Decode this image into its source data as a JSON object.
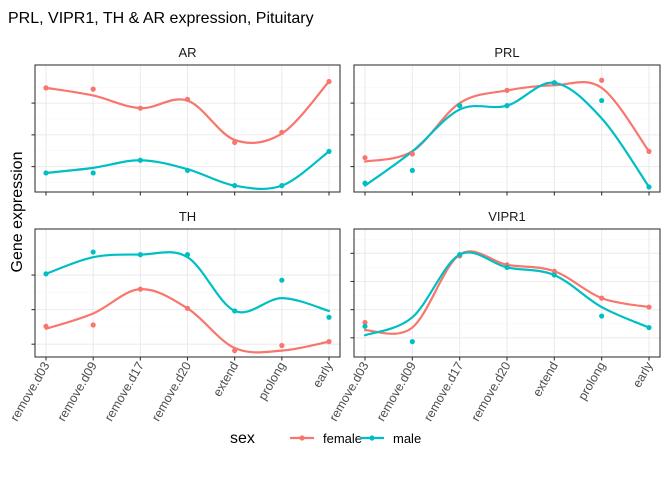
{
  "chart_data": {
    "type": "line",
    "title": "PRL, VIPR1, TH & AR expression, Pituitary",
    "xlabel": "",
    "ylabel": "Gene expression",
    "categories": [
      "remove.d03",
      "remove.d09",
      "remove.d17",
      "remove.d20",
      "extend",
      "prolong",
      "early"
    ],
    "legend": {
      "title": "sex",
      "position": "bottom",
      "items": [
        {
          "name": "female",
          "color": "#F8766D"
        },
        {
          "name": "male",
          "color": "#00BFC4"
        }
      ]
    },
    "colors": {
      "female": "#F8766D",
      "male": "#00BFC4"
    },
    "grid": true,
    "smooth": true,
    "y_tick_labels_shown": false,
    "panels": [
      {
        "name": "AR",
        "ylim": [
          0,
          1
        ],
        "yticks": [
          0.2,
          0.45,
          0.7
        ],
        "series": [
          {
            "name": "female",
            "points": [
              0.82,
              0.81,
              0.66,
              0.73,
              0.39,
              0.47,
              0.87
            ],
            "smooth": [
              0.82,
              0.76,
              0.66,
              0.72,
              0.41,
              0.46,
              0.87
            ]
          },
          {
            "name": "male",
            "points": [
              0.15,
              0.15,
              0.25,
              0.17,
              0.05,
              0.05,
              0.32
            ],
            "smooth": [
              0.15,
              0.19,
              0.25,
              0.18,
              0.05,
              0.05,
              0.32
            ]
          }
        ]
      },
      {
        "name": "PRL",
        "ylim": [
          0,
          1
        ],
        "yticks": [
          0.2,
          0.45,
          0.7
        ],
        "series": [
          {
            "name": "female",
            "points": [
              0.27,
              0.3,
              0.68,
              0.8,
              0.86,
              0.88,
              0.32
            ],
            "smooth": [
              0.24,
              0.32,
              0.7,
              0.8,
              0.84,
              0.82,
              0.32
            ]
          },
          {
            "name": "male",
            "points": [
              0.07,
              0.17,
              0.68,
              0.68,
              0.86,
              0.72,
              0.04
            ],
            "smooth": [
              0.05,
              0.32,
              0.65,
              0.68,
              0.86,
              0.58,
              0.04
            ]
          }
        ]
      },
      {
        "name": "TH",
        "ylim": [
          0,
          1
        ],
        "yticks": [
          0.1,
          0.37,
          0.64
        ],
        "series": [
          {
            "name": "female",
            "points": [
              0.24,
              0.25,
              0.53,
              0.38,
              0.05,
              0.09,
              0.12
            ],
            "smooth": [
              0.22,
              0.34,
              0.53,
              0.38,
              0.07,
              0.05,
              0.12
            ]
          },
          {
            "name": "male",
            "points": [
              0.65,
              0.82,
              0.8,
              0.8,
              0.36,
              0.6,
              0.31
            ],
            "smooth": [
              0.65,
              0.78,
              0.8,
              0.78,
              0.36,
              0.46,
              0.36
            ]
          }
        ]
      },
      {
        "name": "VIPR1",
        "ylim": [
          0,
          1
        ],
        "yticks": [
          0.15,
          0.37,
          0.59,
          0.81
        ],
        "series": [
          {
            "name": "female",
            "points": [
              0.27,
              -0.02,
              0.79,
              0.72,
              0.67,
              0.46,
              0.39
            ],
            "smooth": [
              0.21,
              0.23,
              0.8,
              0.72,
              0.67,
              0.46,
              0.39
            ]
          },
          {
            "name": "male",
            "points": [
              0.24,
              0.12,
              0.8,
              0.7,
              0.64,
              0.32,
              0.23
            ],
            "smooth": [
              0.17,
              0.31,
              0.8,
              0.7,
              0.64,
              0.39,
              0.23
            ]
          }
        ]
      }
    ]
  }
}
